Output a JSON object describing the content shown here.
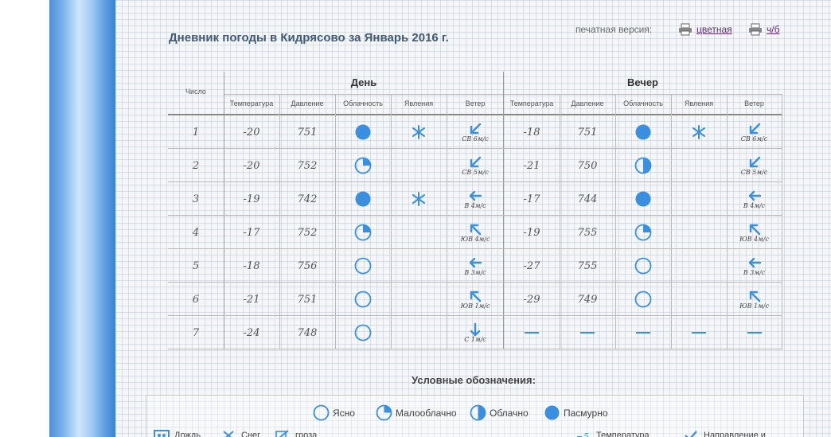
{
  "title": "Дневник погоды в Кидрясово за Январь 2016 г.",
  "print": {
    "label": "печатная версия:",
    "color_option": "цветная",
    "bw_option": "ч/б"
  },
  "table": {
    "col_day_label": "Число",
    "group_day": "День",
    "group_evening": "Вечер",
    "sub_headers": [
      "Температура",
      "Давление",
      "Облачность",
      "Явления",
      "Ветер"
    ],
    "rows": [
      {
        "day": "1",
        "d_temp": "-20",
        "d_press": "751",
        "d_cloud": "overcast",
        "d_phen": "snow",
        "d_wind_dir": "sw-arrow",
        "d_wind": "СВ 6м/с",
        "e_temp": "-18",
        "e_press": "751",
        "e_cloud": "overcast",
        "e_phen": "snow",
        "e_wind_dir": "sw-arrow",
        "e_wind": "СВ 6м/с"
      },
      {
        "day": "2",
        "d_temp": "-20",
        "d_press": "752",
        "d_cloud": "partly",
        "d_phen": "",
        "d_wind_dir": "sw-arrow",
        "d_wind": "СВ 5м/с",
        "e_temp": "-21",
        "e_press": "750",
        "e_cloud": "cloudy",
        "e_phen": "",
        "e_wind_dir": "sw-arrow",
        "e_wind": "СВ 5м/с"
      },
      {
        "day": "3",
        "d_temp": "-19",
        "d_press": "742",
        "d_cloud": "overcast",
        "d_phen": "snow",
        "d_wind_dir": "w-arrow",
        "d_wind": "В 4м/с",
        "e_temp": "-17",
        "e_press": "744",
        "e_cloud": "overcast",
        "e_phen": "",
        "e_wind_dir": "w-arrow",
        "e_wind": "В 4м/с"
      },
      {
        "day": "4",
        "d_temp": "-17",
        "d_press": "752",
        "d_cloud": "partly",
        "d_phen": "",
        "d_wind_dir": "nw-arrow",
        "d_wind": "ЮВ 4м/с",
        "e_temp": "-19",
        "e_press": "755",
        "e_cloud": "partly",
        "e_phen": "",
        "e_wind_dir": "nw-arrow",
        "e_wind": "ЮВ 4м/с"
      },
      {
        "day": "5",
        "d_temp": "-18",
        "d_press": "756",
        "d_cloud": "clear",
        "d_phen": "",
        "d_wind_dir": "w-arrow",
        "d_wind": "В 3м/с",
        "e_temp": "-27",
        "e_press": "755",
        "e_cloud": "clear",
        "e_phen": "",
        "e_wind_dir": "w-arrow",
        "e_wind": "В 3м/с"
      },
      {
        "day": "6",
        "d_temp": "-21",
        "d_press": "751",
        "d_cloud": "clear",
        "d_phen": "",
        "d_wind_dir": "nw-arrow",
        "d_wind": "ЮВ 1м/с",
        "e_temp": "-29",
        "e_press": "749",
        "e_cloud": "clear",
        "e_phen": "",
        "e_wind_dir": "nw-arrow",
        "e_wind": "ЮВ 1м/с"
      },
      {
        "day": "7",
        "d_temp": "-24",
        "d_press": "748",
        "d_cloud": "clear",
        "d_phen": "",
        "d_wind_dir": "s-arrow",
        "d_wind": "С 1м/с",
        "e_temp": "—",
        "e_press": "—",
        "e_cloud": "none",
        "e_phen": "dash",
        "e_wind_dir": "none",
        "e_wind": ""
      }
    ]
  },
  "legend": {
    "title": "Условные обозначения:",
    "clouds": [
      {
        "icon": "clear",
        "label": "Ясно"
      },
      {
        "icon": "partly",
        "label": "Малооблачно"
      },
      {
        "icon": "cloudy",
        "label": "Облачно"
      },
      {
        "icon": "overcast",
        "label": "Пасмурно"
      }
    ],
    "phenomena": [
      {
        "icon": "rain",
        "label": "Дождь"
      },
      {
        "icon": "snow",
        "label": "Снег"
      },
      {
        "icon": "storm",
        "label": "гроза"
      },
      {
        "icon": "temp",
        "label": "Температура"
      },
      {
        "icon": "wind",
        "label": "Направление и"
      }
    ]
  },
  "colors": {
    "accent": "#3a8fe0",
    "title": "#3f5a78",
    "link": "#5a2a7a"
  }
}
